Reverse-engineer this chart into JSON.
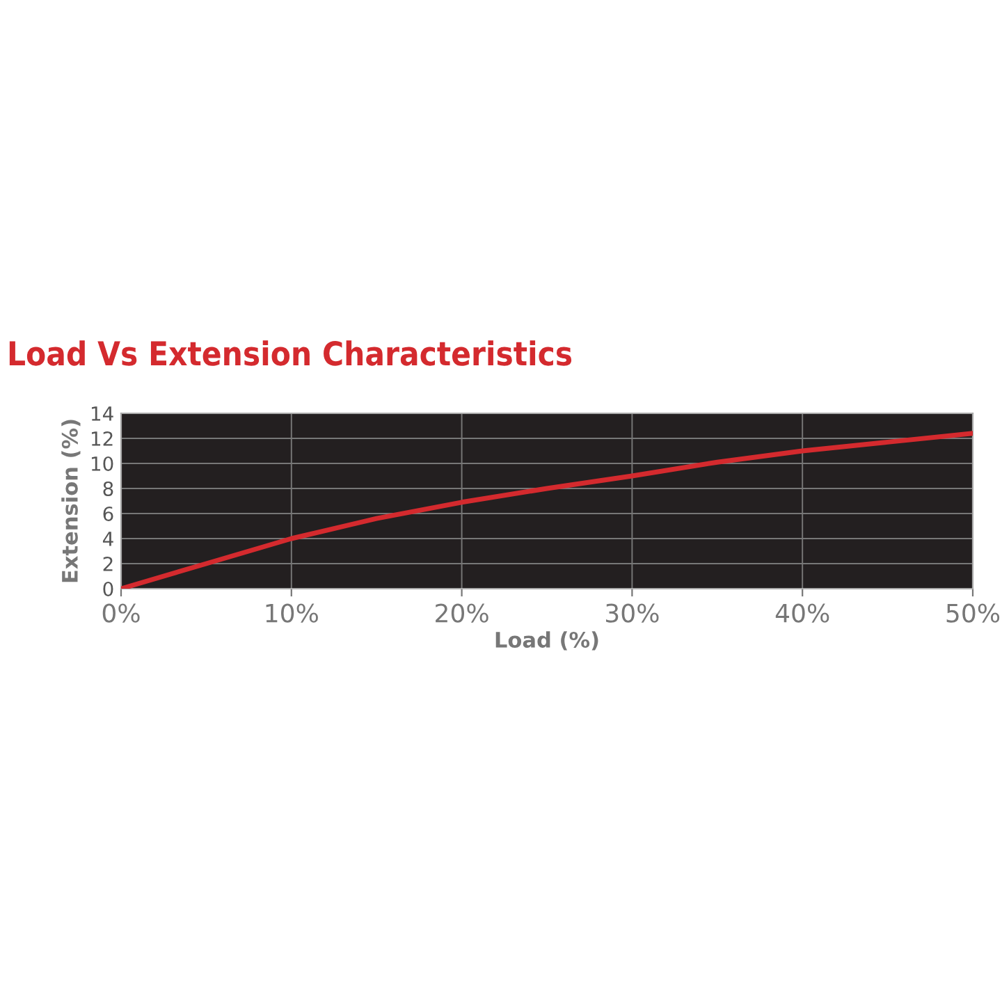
{
  "chart_data": {
    "type": "line",
    "title": "Load Vs Extension Characteristics",
    "xlabel": "Load (%)",
    "ylabel": "Extension (%)",
    "x": [
      0,
      5,
      10,
      15,
      20,
      25,
      30,
      35,
      40,
      45,
      50
    ],
    "series": [
      {
        "color": "#d42a2e",
        "values": [
          0,
          2.0,
          4.0,
          5.6,
          6.9,
          8.0,
          9.0,
          10.1,
          11.0,
          11.7,
          12.4
        ]
      }
    ],
    "xlim": [
      0,
      50
    ],
    "ylim": [
      0,
      14
    ],
    "xticks": [
      {
        "value": 0,
        "label": "0%"
      },
      {
        "value": 10,
        "label": "10%"
      },
      {
        "value": 20,
        "label": "20%"
      },
      {
        "value": 30,
        "label": "30%"
      },
      {
        "value": 40,
        "label": "40%"
      },
      {
        "value": 50,
        "label": "50%"
      }
    ],
    "yticks": [
      0,
      2,
      4,
      6,
      8,
      10,
      12,
      14
    ],
    "grid": true,
    "marker": "none",
    "line_style": "solid",
    "legend": false
  }
}
